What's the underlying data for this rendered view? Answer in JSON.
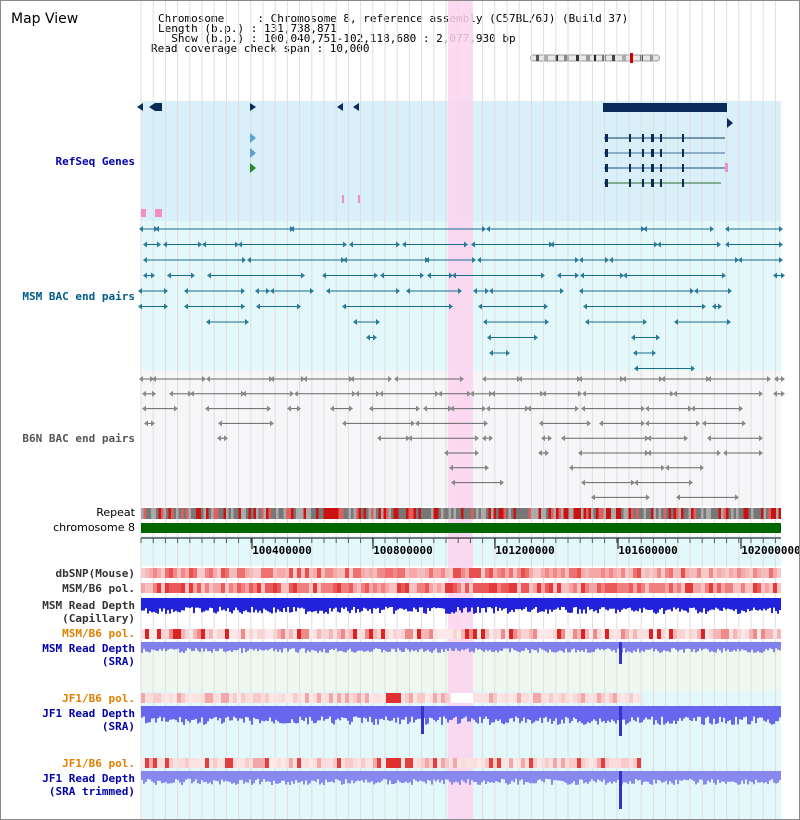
{
  "app": {
    "title": "Map View"
  },
  "info": {
    "chromosome": "Chromosome     : Chromosome 8, reference assembly (C57BL/6J) (Build 37)",
    "length": "Length (b.p.) : 131,738,871",
    "show": "  Show (b.p.) : 100,040,751-102,118,680 : 2,077,930 bp",
    "coverage": "Read coverage check span : 10,000"
  },
  "tracks": {
    "refseq": "RefSeq Genes",
    "msm_bac": "MSM BAC end pairs",
    "b6n_bac": "B6N BAC end pairs",
    "repeat": "Repeat",
    "chromosome": "chromosome 8",
    "dbsnp": "dbSNP(Mouse)",
    "msm_b6_pol_1": "MSM/B6 pol.",
    "msm_read_depth_cap_1": "MSM Read Depth",
    "msm_read_depth_cap_2": "(Capillary)",
    "msm_b6_pol_2": "MSM/B6 pol.",
    "msm_read_depth_sra_1": "MSM Read Depth",
    "msm_read_depth_sra_2": "(SRA)",
    "jf1_b6_pol_1": "JF1/B6 pol.",
    "jf1_read_depth_sra_1": "JF1 Read Depth",
    "jf1_read_depth_sra_2": "(SRA)",
    "jf1_b6_pol_2": "JF1/B6 pol.",
    "jf1_read_depth_trim_1": "JF1 Read Depth",
    "jf1_read_depth_trim_2": "(SRA trimmed)"
  },
  "axis": {
    "ticks": [
      "100400000",
      "100800000",
      "101200000",
      "101600000",
      "102000000"
    ]
  },
  "colors": {
    "blue_label": "#0000aa",
    "orange_label": "#e08000",
    "refseq_bg": "#d9f0fa",
    "msm_bg": "#e3f8fa",
    "highlight": "#fbd3ee",
    "gene": "#0a2a5a",
    "chrom": "#006600"
  }
}
